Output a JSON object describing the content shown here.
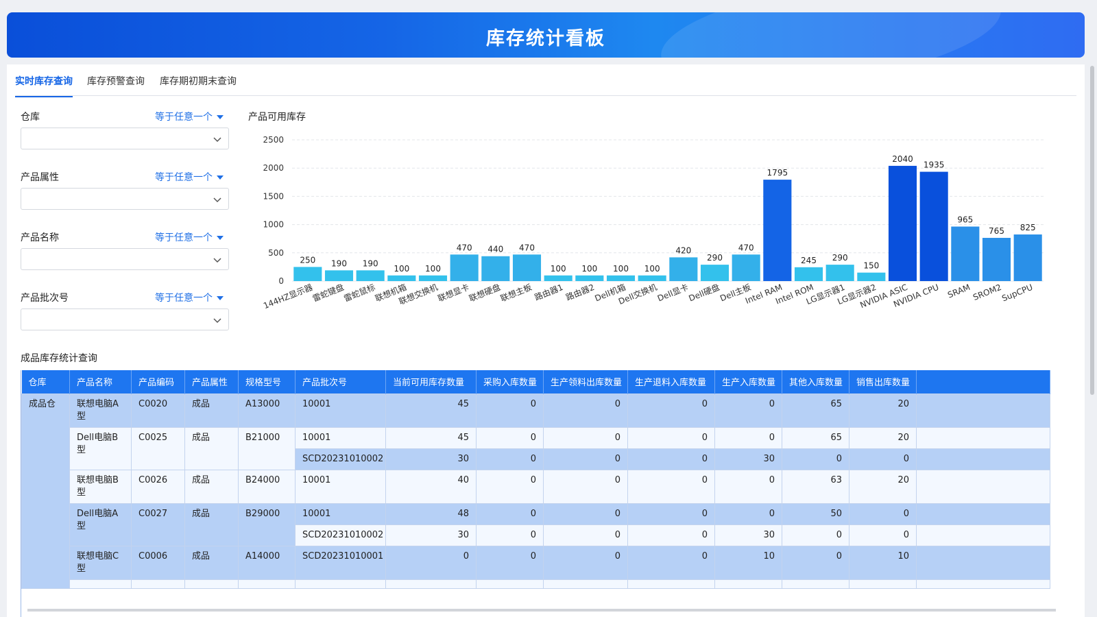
{
  "header": {
    "title": "库存统计看板"
  },
  "tabs": [
    {
      "label": "实时库存查询",
      "active": true
    },
    {
      "label": "库存预警查询",
      "active": false
    },
    {
      "label": "库存期初期末查询",
      "active": false
    }
  ],
  "filters": [
    {
      "label": "仓库",
      "operator": "等于任意一个",
      "value": ""
    },
    {
      "label": "产品属性",
      "operator": "等于任意一个",
      "value": ""
    },
    {
      "label": "产品名称",
      "operator": "等于任意一个",
      "value": ""
    },
    {
      "label": "产品批次号",
      "operator": "等于任意一个",
      "value": ""
    }
  ],
  "chart_title": "产品可用库存",
  "chart_data": {
    "type": "bar",
    "title": "产品可用库存",
    "xlabel": "",
    "ylabel": "",
    "ylim": [
      0,
      2500
    ],
    "yticks": [
      0,
      500,
      1000,
      1500,
      2000,
      2500
    ],
    "grid": true,
    "categories": [
      "144HZ显示器",
      "雷蛇键盘",
      "雷蛇鼠标",
      "联想机箱",
      "联想交换机",
      "联想显卡",
      "联想硬盘",
      "联想主板",
      "路由器1",
      "路由器2",
      "Dell机箱",
      "Dell交换机",
      "Dell显卡",
      "Dell硬盘",
      "Dell主板",
      "Intel RAM",
      "Intel ROM",
      "LG显示器1",
      "LG显示器2",
      "NVIDIA ASIC",
      "NVIDIA CPU",
      "SRAM",
      "SROM2",
      "SupCPU"
    ],
    "values": [
      250,
      190,
      190,
      100,
      100,
      470,
      440,
      470,
      100,
      100,
      100,
      100,
      420,
      290,
      470,
      1795,
      245,
      290,
      150,
      2040,
      1935,
      965,
      765,
      825
    ],
    "colors": {
      "low": "#33c1ec",
      "mid": "#33b0ea",
      "high_a": "#1464e6",
      "high_b": "#0950dc",
      "upper": "#2a90e8"
    }
  },
  "table": {
    "title": "成品库存统计查询",
    "columns": [
      "仓库",
      "产品名称",
      "产品编码",
      "产品属性",
      "规格型号",
      "产品批次号",
      "当前可用库存数量",
      "采购入库数量",
      "生产领料出库数量",
      "生产退料入库数量",
      "生产入库数量",
      "其他入库数量",
      "销售出库数量"
    ],
    "warehouse": "成品仓",
    "groups": [
      {
        "name": "联想电脑A型",
        "code": "C0020",
        "attr": "成品",
        "spec": "A13000",
        "batches": [
          {
            "batch": "10001",
            "values": [
              "45",
              "0",
              "0",
              "0",
              "0",
              "65",
              "20"
            ]
          }
        ]
      },
      {
        "name": "Dell电脑B型",
        "code": "C0025",
        "attr": "成品",
        "spec": "B21000",
        "batches": [
          {
            "batch": "10001",
            "values": [
              "45",
              "0",
              "0",
              "0",
              "0",
              "65",
              "20"
            ]
          },
          {
            "batch": "SCD20231010002",
            "values": [
              "30",
              "0",
              "0",
              "0",
              "30",
              "0",
              "0"
            ]
          }
        ]
      },
      {
        "name": "联想电脑B型",
        "code": "C0026",
        "attr": "成品",
        "spec": "B24000",
        "batches": [
          {
            "batch": "10001",
            "values": [
              "40",
              "0",
              "0",
              "0",
              "0",
              "63",
              "20"
            ]
          }
        ]
      },
      {
        "name": "Dell电脑A型",
        "code": "C0027",
        "attr": "成品",
        "spec": "B29000",
        "batches": [
          {
            "batch": "10001",
            "values": [
              "48",
              "0",
              "0",
              "0",
              "0",
              "50",
              "0"
            ]
          },
          {
            "batch": "SCD20231010002",
            "values": [
              "30",
              "0",
              "0",
              "0",
              "30",
              "0",
              "0"
            ]
          }
        ]
      },
      {
        "name": "联想电脑C型",
        "code": "C0006",
        "attr": "成品",
        "spec": "A14000",
        "batches": [
          {
            "batch": "SCD20231010001",
            "values": [
              "0",
              "0",
              "0",
              "0",
              "10",
              "0",
              "10"
            ]
          }
        ]
      }
    ]
  }
}
